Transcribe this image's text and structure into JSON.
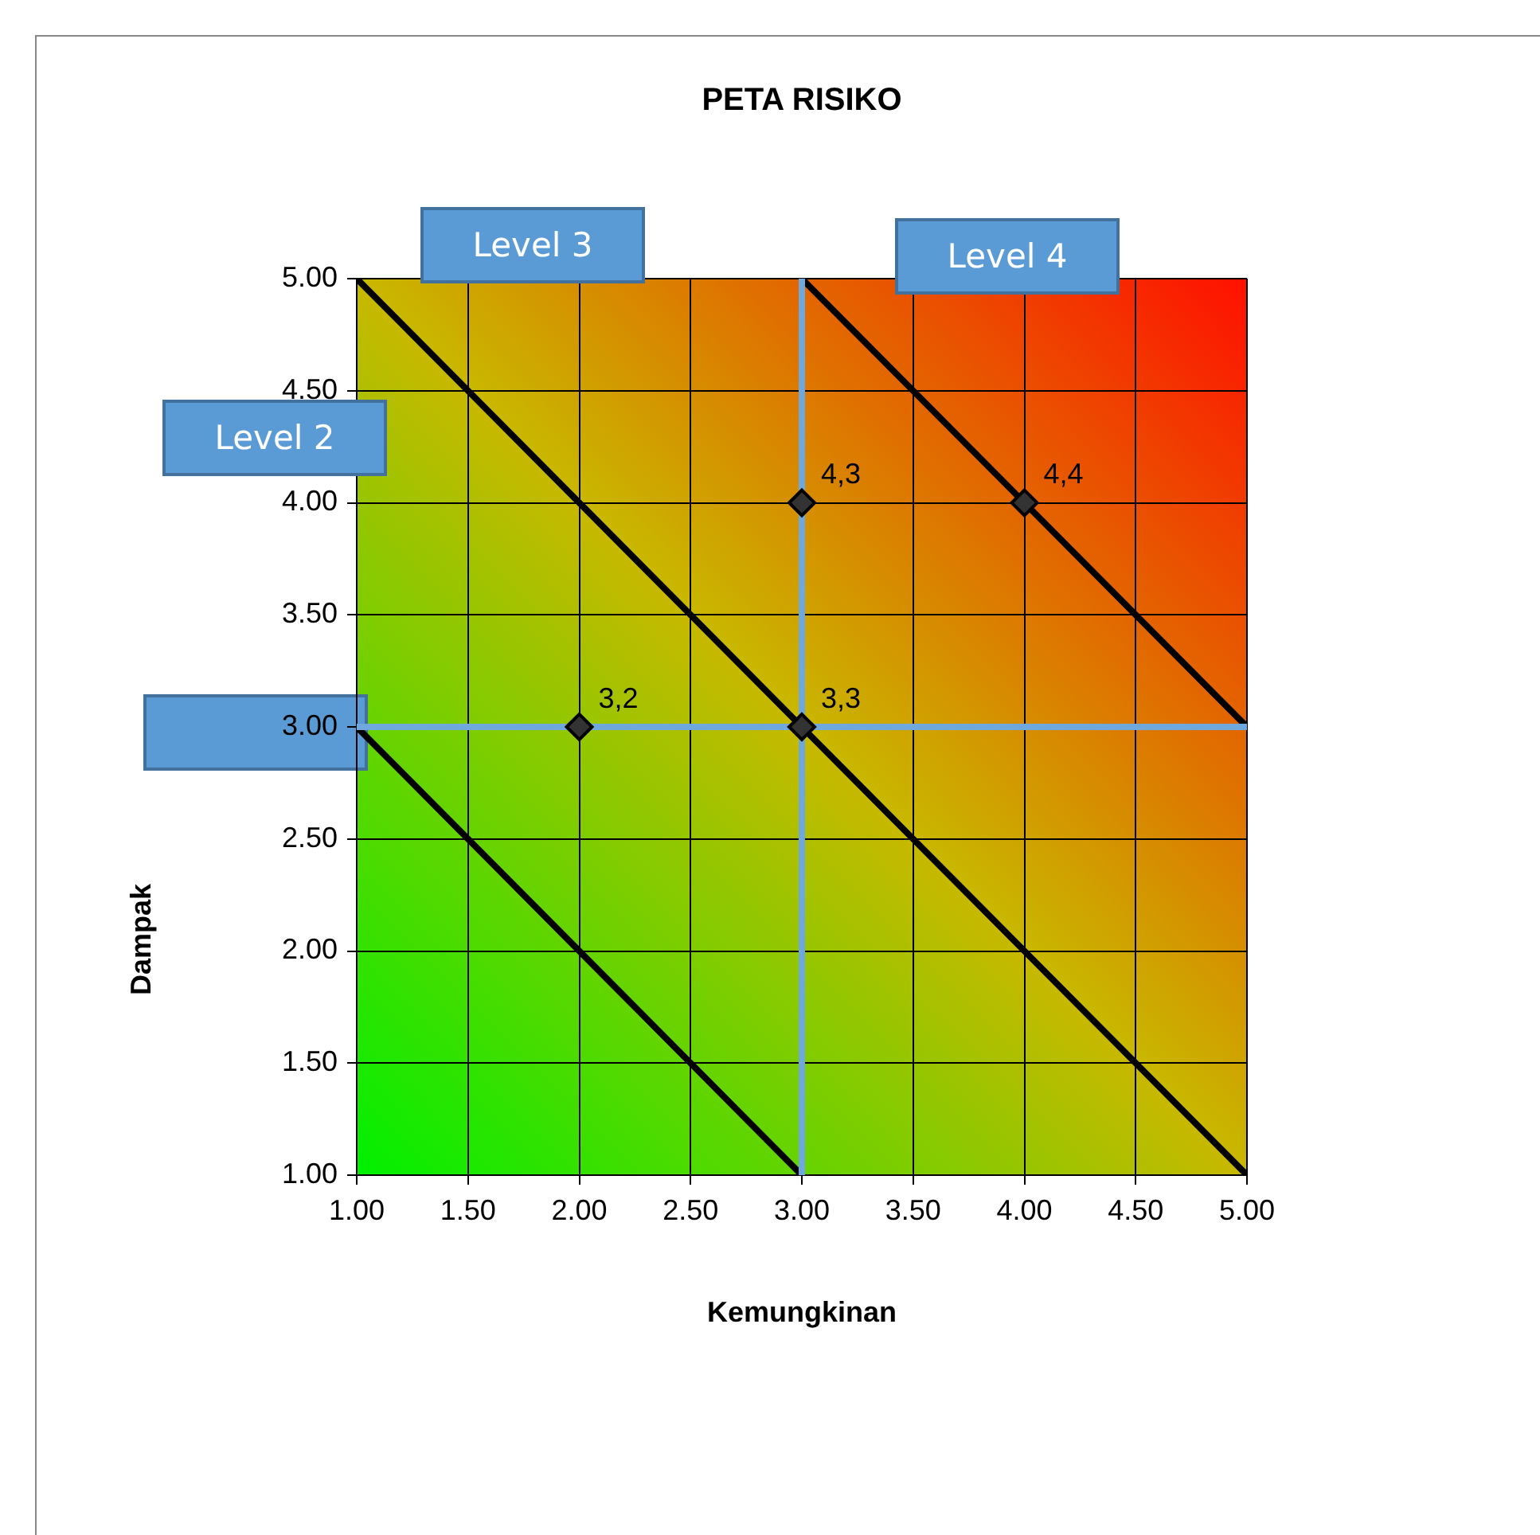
{
  "chart_data": {
    "type": "scatter",
    "title": "PETA RISIKO",
    "xlabel": "Kemungkinan",
    "ylabel": "Dampak",
    "xlim": [
      1,
      5
    ],
    "ylim": [
      1,
      5
    ],
    "xticks": [
      {
        "value": 1,
        "label": "1.00"
      },
      {
        "value": 1.5,
        "label": "1.50"
      },
      {
        "value": 2,
        "label": "2.00"
      },
      {
        "value": 2.5,
        "label": "2.50"
      },
      {
        "value": 3,
        "label": "3.00"
      },
      {
        "value": 3.5,
        "label": "3.50"
      },
      {
        "value": 4,
        "label": "4.00"
      },
      {
        "value": 4.5,
        "label": "4.50"
      },
      {
        "value": 5,
        "label": "5.00"
      }
    ],
    "yticks": [
      {
        "value": 1,
        "label": "1.00"
      },
      {
        "value": 1.5,
        "label": "1.50"
      },
      {
        "value": 2,
        "label": "2.00"
      },
      {
        "value": 2.5,
        "label": "2.50"
      },
      {
        "value": 3,
        "label": "3.00"
      },
      {
        "value": 3.5,
        "label": "3.50"
      },
      {
        "value": 4,
        "label": "4.00"
      },
      {
        "value": 4.5,
        "label": "4.50"
      },
      {
        "value": 5,
        "label": "5.00"
      }
    ],
    "grid": true,
    "legend": false,
    "series": [
      {
        "type": "line",
        "color": "#6fa8dc",
        "marker": "none",
        "x": [
          1,
          5
        ],
        "values": [
          3,
          3
        ]
      },
      {
        "type": "line",
        "color": "#6fa8dc",
        "marker": "none",
        "x": [
          3,
          3
        ],
        "values": [
          1,
          5
        ]
      },
      {
        "type": "line",
        "color": "#000000",
        "marker": "none",
        "x": [
          1,
          3
        ],
        "values": [
          3,
          1
        ]
      },
      {
        "type": "line",
        "color": "#000000",
        "marker": "none",
        "x": [
          1,
          5
        ],
        "values": [
          5,
          1
        ]
      },
      {
        "type": "line",
        "color": "#000000",
        "marker": "none",
        "x": [
          3,
          5
        ],
        "values": [
          5,
          3
        ]
      },
      {
        "color": "#333333",
        "marker": "diamond",
        "x": [
          2,
          3,
          3,
          4
        ],
        "values": [
          3,
          3,
          4,
          4
        ]
      }
    ],
    "annotations": [
      "Level 2",
      "Level 3",
      "Level 4",
      {
        "text": "3,2",
        "x": 2,
        "y": 3
      },
      {
        "text": "3,3",
        "x": 3,
        "y": 3
      },
      {
        "text": "4,3",
        "x": 3,
        "y": 4
      },
      {
        "text": "4,4",
        "x": 4,
        "y": 4
      }
    ]
  }
}
